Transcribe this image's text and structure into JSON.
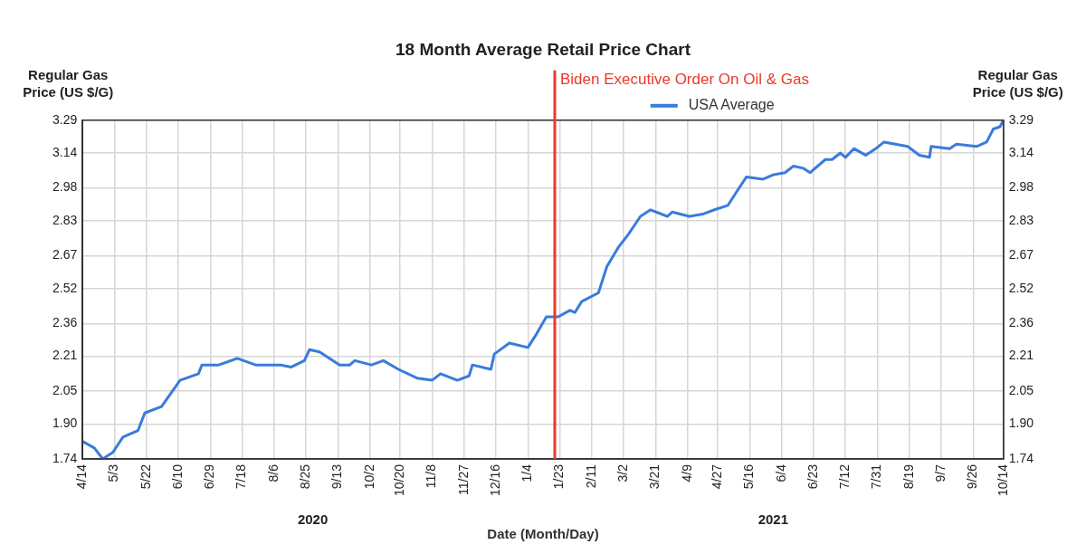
{
  "chart_data": {
    "type": "line",
    "title": "18 Month Average Retail Price Chart",
    "xlabel": "Date (Month/Day)",
    "ylabel": "Regular Gas\nPrice (US $/G)",
    "y2label": "Regular Gas\nPrice (US $/G)",
    "x": [
      "2020-04-14",
      "2020-04-21",
      "2020-04-26",
      "2020-05-02",
      "2020-05-08",
      "2020-05-17",
      "2020-05-21",
      "2020-05-31",
      "2020-06-11",
      "2020-06-22",
      "2020-06-24",
      "2020-07-04",
      "2020-07-15",
      "2020-07-26",
      "2020-08-10",
      "2020-08-16",
      "2020-08-24",
      "2020-08-27",
      "2020-09-02",
      "2020-09-14",
      "2020-09-20",
      "2020-09-23",
      "2020-10-03",
      "2020-10-10",
      "2020-10-19",
      "2020-10-30",
      "2020-11-08",
      "2020-11-13",
      "2020-11-23",
      "2020-11-30",
      "2020-12-02",
      "2020-12-13",
      "2020-12-15",
      "2020-12-24",
      "2021-01-04",
      "2021-01-09",
      "2021-01-15",
      "2021-01-20",
      "2021-01-22",
      "2021-01-29",
      "2021-02-01",
      "2021-02-05",
      "2021-02-15",
      "2021-02-20",
      "2021-02-27",
      "2021-03-05",
      "2021-03-12",
      "2021-03-18",
      "2021-03-28",
      "2021-03-31",
      "2021-04-10",
      "2021-04-18",
      "2021-04-25",
      "2021-05-03",
      "2021-05-08",
      "2021-05-14",
      "2021-05-24",
      "2021-05-30",
      "2021-06-06",
      "2021-06-11",
      "2021-06-17",
      "2021-06-21",
      "2021-06-30",
      "2021-07-04",
      "2021-07-09",
      "2021-07-12",
      "2021-07-17",
      "2021-07-24",
      "2021-07-30",
      "2021-08-04",
      "2021-08-18",
      "2021-08-25",
      "2021-08-31",
      "2021-09-01",
      "2021-09-12",
      "2021-09-16",
      "2021-09-28",
      "2021-10-04",
      "2021-10-08",
      "2021-10-12",
      "2021-10-14"
    ],
    "series": [
      {
        "name": "USA Average",
        "color": "#3a7bdc",
        "values": [
          1.82,
          1.79,
          1.74,
          1.77,
          1.84,
          1.87,
          1.95,
          1.98,
          2.1,
          2.13,
          2.17,
          2.17,
          2.2,
          2.17,
          2.17,
          2.16,
          2.19,
          2.24,
          2.23,
          2.17,
          2.17,
          2.19,
          2.17,
          2.19,
          2.15,
          2.11,
          2.1,
          2.13,
          2.1,
          2.12,
          2.17,
          2.15,
          2.22,
          2.27,
          2.25,
          2.31,
          2.39,
          2.39,
          2.39,
          2.42,
          2.41,
          2.46,
          2.5,
          2.62,
          2.71,
          2.77,
          2.85,
          2.88,
          2.85,
          2.87,
          2.85,
          2.86,
          2.88,
          2.9,
          2.96,
          3.03,
          3.02,
          3.04,
          3.05,
          3.08,
          3.07,
          3.05,
          3.11,
          3.11,
          3.14,
          3.12,
          3.16,
          3.13,
          3.16,
          3.19,
          3.17,
          3.13,
          3.12,
          3.17,
          3.16,
          3.18,
          3.17,
          3.19,
          3.25,
          3.26,
          3.29
        ]
      }
    ],
    "xlim": [
      "2020-04-14",
      "2021-10-14"
    ],
    "xticks": [
      {
        "value": "2020-04-14",
        "label": "4/14"
      },
      {
        "value": "2020-05-03",
        "label": "5/3"
      },
      {
        "value": "2020-05-22",
        "label": "5/22"
      },
      {
        "value": "2020-06-10",
        "label": "6/10"
      },
      {
        "value": "2020-06-29",
        "label": "6/29"
      },
      {
        "value": "2020-07-18",
        "label": "7/18"
      },
      {
        "value": "2020-08-06",
        "label": "8/6"
      },
      {
        "value": "2020-08-25",
        "label": "8/25"
      },
      {
        "value": "2020-09-13",
        "label": "9/13"
      },
      {
        "value": "2020-10-02",
        "label": "10/2"
      },
      {
        "value": "2020-10-20",
        "label": "10/20"
      },
      {
        "value": "2020-11-08",
        "label": "11/8"
      },
      {
        "value": "2020-11-27",
        "label": "11/27"
      },
      {
        "value": "2020-12-16",
        "label": "12/16"
      },
      {
        "value": "2021-01-04",
        "label": "1/4"
      },
      {
        "value": "2021-01-23",
        "label": "1/23"
      },
      {
        "value": "2021-02-11",
        "label": "2/11"
      },
      {
        "value": "2021-03-02",
        "label": "3/2"
      },
      {
        "value": "2021-03-21",
        "label": "3/21"
      },
      {
        "value": "2021-04-09",
        "label": "4/9"
      },
      {
        "value": "2021-04-27",
        "label": "4/27"
      },
      {
        "value": "2021-05-16",
        "label": "5/16"
      },
      {
        "value": "2021-06-04",
        "label": "6/4"
      },
      {
        "value": "2021-06-23",
        "label": "6/23"
      },
      {
        "value": "2021-07-12",
        "label": "7/12"
      },
      {
        "value": "2021-07-31",
        "label": "7/31"
      },
      {
        "value": "2021-08-19",
        "label": "8/19"
      },
      {
        "value": "2021-09-07",
        "label": "9/7"
      },
      {
        "value": "2021-09-26",
        "label": "9/26"
      },
      {
        "value": "2021-10-14",
        "label": "10/14"
      }
    ],
    "ylim": [
      1.74,
      3.29
    ],
    "yticks": [
      1.74,
      {
        "value": 1.9,
        "label": "1.90"
      },
      2.05,
      2.21,
      2.36,
      2.52,
      2.67,
      2.83,
      2.98,
      3.14,
      3.29
    ],
    "y2lim": [
      1.74,
      3.29
    ],
    "y2ticks": [
      1.74,
      {
        "value": 1.9,
        "label": "1.90"
      },
      2.05,
      2.21,
      2.36,
      2.52,
      2.67,
      2.83,
      2.98,
      3.14,
      3.29
    ],
    "ref_lines": [
      {
        "axis": "x",
        "value": "2021-01-20",
        "label": "Biden Executive Order On Oil & Gas",
        "color": "#e8392a"
      }
    ],
    "annotations": [
      "2020",
      "2021"
    ],
    "grid": true,
    "legend": "top right",
    "marker": "none",
    "line_style": "solid"
  }
}
